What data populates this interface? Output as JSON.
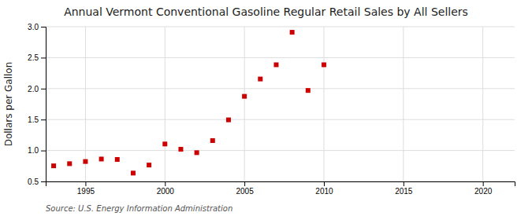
{
  "chart_data": {
    "type": "scatter",
    "title": "Annual Vermont Conventional Gasoline Regular Retail Sales by All Sellers",
    "y_label": "Dollars per Gallon",
    "source": "Source: U.S. Energy Information Administration",
    "x": [
      1993,
      1994,
      1995,
      1996,
      1997,
      1998,
      1999,
      2000,
      2001,
      2002,
      2003,
      2004,
      2005,
      2006,
      2007,
      2008,
      2009,
      2010
    ],
    "values": [
      0.752,
      0.787,
      0.822,
      0.862,
      0.855,
      0.635,
      0.765,
      1.105,
      1.02,
      0.965,
      1.16,
      1.495,
      1.875,
      2.155,
      2.385,
      2.91,
      1.97,
      2.385
    ],
    "color": "#cc0000",
    "marker": "square",
    "xlim": [
      1992.5,
      2022
    ],
    "ylim": [
      0.5,
      3.0
    ],
    "xticks": [
      1995,
      2000,
      2005,
      2010,
      2015,
      2020
    ],
    "yticks": [
      0.5,
      {
        "value": 1.0,
        "label": "1.0"
      },
      1.5,
      {
        "value": 2.0,
        "label": "2.0"
      },
      2.5,
      {
        "value": 3.0,
        "label": "3.0"
      }
    ],
    "grid": true
  }
}
